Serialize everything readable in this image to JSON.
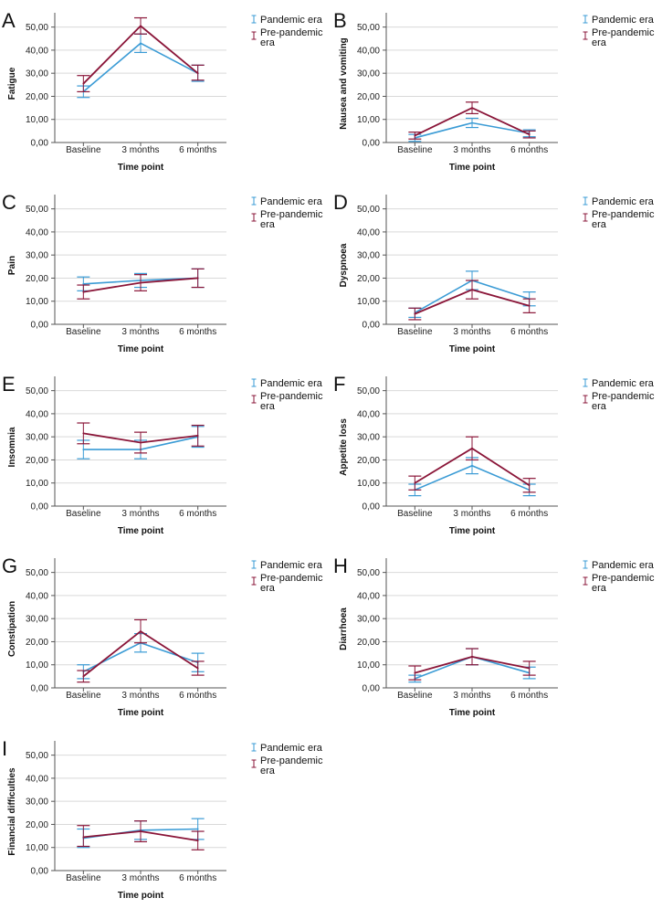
{
  "chart_data": [
    {
      "type": "line",
      "letter": "A",
      "ylabel": "Fatigue",
      "xlabel": "Time point",
      "categories": [
        "Baseline",
        "3 months",
        "6 months"
      ],
      "ylim": [
        0,
        55
      ],
      "yticks": [
        "0,00",
        "10,00",
        "20,00",
        "30,00",
        "40,00",
        "50,00"
      ],
      "grid": true,
      "legend": "top-right",
      "series": [
        {
          "name": "Pandemic era",
          "color": "#3a9bd5",
          "values": [
            22.0,
            43.0,
            30.0
          ],
          "err_low": [
            19.5,
            39.0,
            26.5
          ],
          "err_high": [
            24.5,
            47.0,
            33.5
          ]
        },
        {
          "name": "Pre-pandemic era",
          "color": "#8a1538",
          "values": [
            25.5,
            50.5,
            30.0
          ],
          "err_low": [
            22.0,
            47.0,
            27.0
          ],
          "err_high": [
            29.0,
            54.0,
            33.5
          ]
        }
      ]
    },
    {
      "type": "line",
      "letter": "B",
      "ylabel": "Nausea and vomiting",
      "xlabel": "Time point",
      "categories": [
        "Baseline",
        "3 months",
        "6 months"
      ],
      "ylim": [
        0,
        55
      ],
      "yticks": [
        "0,00",
        "10,00",
        "20,00",
        "30,00",
        "40,00",
        "50,00"
      ],
      "grid": true,
      "legend": "top-right",
      "series": [
        {
          "name": "Pandemic era",
          "color": "#3a9bd5",
          "values": [
            2.0,
            8.5,
            4.0
          ],
          "err_low": [
            0.5,
            6.5,
            2.5
          ],
          "err_high": [
            3.5,
            10.5,
            5.5
          ]
        },
        {
          "name": "Pre-pandemic era",
          "color": "#8a1538",
          "values": [
            3.0,
            15.0,
            3.5
          ],
          "err_low": [
            1.5,
            12.5,
            2.0
          ],
          "err_high": [
            4.5,
            17.5,
            5.0
          ]
        }
      ]
    },
    {
      "type": "line",
      "letter": "C",
      "ylabel": "Pain",
      "xlabel": "Time point",
      "categories": [
        "Baseline",
        "3 months",
        "6 months"
      ],
      "ylim": [
        0,
        55
      ],
      "yticks": [
        "0,00",
        "10,00",
        "20,00",
        "30,00",
        "40,00",
        "50,00"
      ],
      "grid": true,
      "legend": "top-right",
      "series": [
        {
          "name": "Pandemic era",
          "color": "#3a9bd5",
          "values": [
            17.5,
            19.0,
            20.0
          ],
          "err_low": [
            14.5,
            16.0,
            16.0
          ],
          "err_high": [
            20.5,
            22.0,
            24.0
          ]
        },
        {
          "name": "Pre-pandemic era",
          "color": "#8a1538",
          "values": [
            14.0,
            18.0,
            20.0
          ],
          "err_low": [
            11.0,
            14.5,
            16.0
          ],
          "err_high": [
            17.0,
            21.5,
            24.0
          ]
        }
      ]
    },
    {
      "type": "line",
      "letter": "D",
      "ylabel": "Dyspnoea",
      "xlabel": "Time point",
      "categories": [
        "Baseline",
        "3 months",
        "6 months"
      ],
      "ylim": [
        0,
        55
      ],
      "yticks": [
        "0,00",
        "10,00",
        "20,00",
        "30,00",
        "40,00",
        "50,00"
      ],
      "grid": true,
      "legend": "top-right",
      "series": [
        {
          "name": "Pandemic era",
          "color": "#3a9bd5",
          "values": [
            5.0,
            19.0,
            11.0
          ],
          "err_low": [
            3.0,
            15.0,
            8.0
          ],
          "err_high": [
            7.0,
            23.0,
            14.0
          ]
        },
        {
          "name": "Pre-pandemic era",
          "color": "#8a1538",
          "values": [
            4.5,
            15.0,
            8.0
          ],
          "err_low": [
            2.0,
            11.0,
            5.0
          ],
          "err_high": [
            7.0,
            19.0,
            11.0
          ]
        }
      ]
    },
    {
      "type": "line",
      "letter": "E",
      "ylabel": "Insomnia",
      "xlabel": "Time point",
      "categories": [
        "Baseline",
        "3 months",
        "6 months"
      ],
      "ylim": [
        0,
        55
      ],
      "yticks": [
        "0,00",
        "10,00",
        "20,00",
        "30,00",
        "40,00",
        "50,00"
      ],
      "grid": true,
      "legend": "top-right",
      "series": [
        {
          "name": "Pandemic era",
          "color": "#3a9bd5",
          "values": [
            24.5,
            24.5,
            30.0
          ],
          "err_low": [
            20.5,
            20.5,
            25.5
          ],
          "err_high": [
            28.5,
            28.5,
            34.5
          ]
        },
        {
          "name": "Pre-pandemic era",
          "color": "#8a1538",
          "values": [
            31.5,
            27.5,
            30.5
          ],
          "err_low": [
            27.0,
            23.0,
            26.0
          ],
          "err_high": [
            36.0,
            32.0,
            35.0
          ]
        }
      ]
    },
    {
      "type": "line",
      "letter": "F",
      "ylabel": "Appetite loss",
      "xlabel": "Time point",
      "categories": [
        "Baseline",
        "3 months",
        "6 months"
      ],
      "ylim": [
        0,
        55
      ],
      "yticks": [
        "0,00",
        "10,00",
        "20,00",
        "30,00",
        "40,00",
        "50,00"
      ],
      "grid": true,
      "legend": "top-right",
      "series": [
        {
          "name": "Pandemic era",
          "color": "#3a9bd5",
          "values": [
            7.0,
            17.5,
            7.0
          ],
          "err_low": [
            4.5,
            14.0,
            4.5
          ],
          "err_high": [
            9.5,
            21.0,
            9.5
          ]
        },
        {
          "name": "Pre-pandemic era",
          "color": "#8a1538",
          "values": [
            10.0,
            25.0,
            9.0
          ],
          "err_low": [
            7.0,
            20.0,
            6.0
          ],
          "err_high": [
            13.0,
            30.0,
            12.0
          ]
        }
      ]
    },
    {
      "type": "line",
      "letter": "G",
      "ylabel": "Constipation",
      "xlabel": "Time point",
      "categories": [
        "Baseline",
        "3 months",
        "6 months"
      ],
      "ylim": [
        0,
        55
      ],
      "yticks": [
        "0,00",
        "10,00",
        "20,00",
        "30,00",
        "40,00",
        "50,00"
      ],
      "grid": true,
      "legend": "top-right",
      "series": [
        {
          "name": "Pandemic era",
          "color": "#3a9bd5",
          "values": [
            7.0,
            19.5,
            11.0
          ],
          "err_low": [
            4.0,
            15.5,
            7.0
          ],
          "err_high": [
            10.0,
            23.5,
            15.0
          ]
        },
        {
          "name": "Pre-pandemic era",
          "color": "#8a1538",
          "values": [
            5.0,
            24.5,
            8.5
          ],
          "err_low": [
            2.5,
            19.5,
            5.5
          ],
          "err_high": [
            7.5,
            29.5,
            11.5
          ]
        }
      ]
    },
    {
      "type": "line",
      "letter": "H",
      "ylabel": "Diarrhoea",
      "xlabel": "Time point",
      "categories": [
        "Baseline",
        "3 months",
        "6 months"
      ],
      "ylim": [
        0,
        55
      ],
      "yticks": [
        "0,00",
        "10,00",
        "20,00",
        "30,00",
        "40,00",
        "50,00"
      ],
      "grid": true,
      "legend": "top-right",
      "series": [
        {
          "name": "Pandemic era",
          "color": "#3a9bd5",
          "values": [
            4.0,
            13.5,
            6.5
          ],
          "err_low": [
            2.5,
            10.0,
            4.0
          ],
          "err_high": [
            5.5,
            17.0,
            9.0
          ]
        },
        {
          "name": "Pre-pandemic era",
          "color": "#8a1538",
          "values": [
            6.5,
            13.5,
            8.5
          ],
          "err_low": [
            3.5,
            10.0,
            5.5
          ],
          "err_high": [
            9.5,
            17.0,
            11.5
          ]
        }
      ]
    },
    {
      "type": "line",
      "letter": "I",
      "ylabel": "Financial difficulties",
      "xlabel": "Time point",
      "categories": [
        "Baseline",
        "3 months",
        "6 months"
      ],
      "ylim": [
        0,
        55
      ],
      "yticks": [
        "0,00",
        "10,00",
        "20,00",
        "30,00",
        "40,00",
        "50,00"
      ],
      "grid": true,
      "legend": "top-right",
      "series": [
        {
          "name": "Pandemic era",
          "color": "#3a9bd5",
          "values": [
            14.0,
            17.5,
            18.0
          ],
          "err_low": [
            10.0,
            13.5,
            13.5
          ],
          "err_high": [
            18.0,
            21.5,
            22.5
          ]
        },
        {
          "name": "Pre-pandemic era",
          "color": "#8a1538",
          "values": [
            14.5,
            17.0,
            13.0
          ],
          "err_low": [
            10.5,
            12.5,
            9.0
          ],
          "err_high": [
            19.5,
            21.5,
            17.0
          ]
        }
      ]
    }
  ]
}
